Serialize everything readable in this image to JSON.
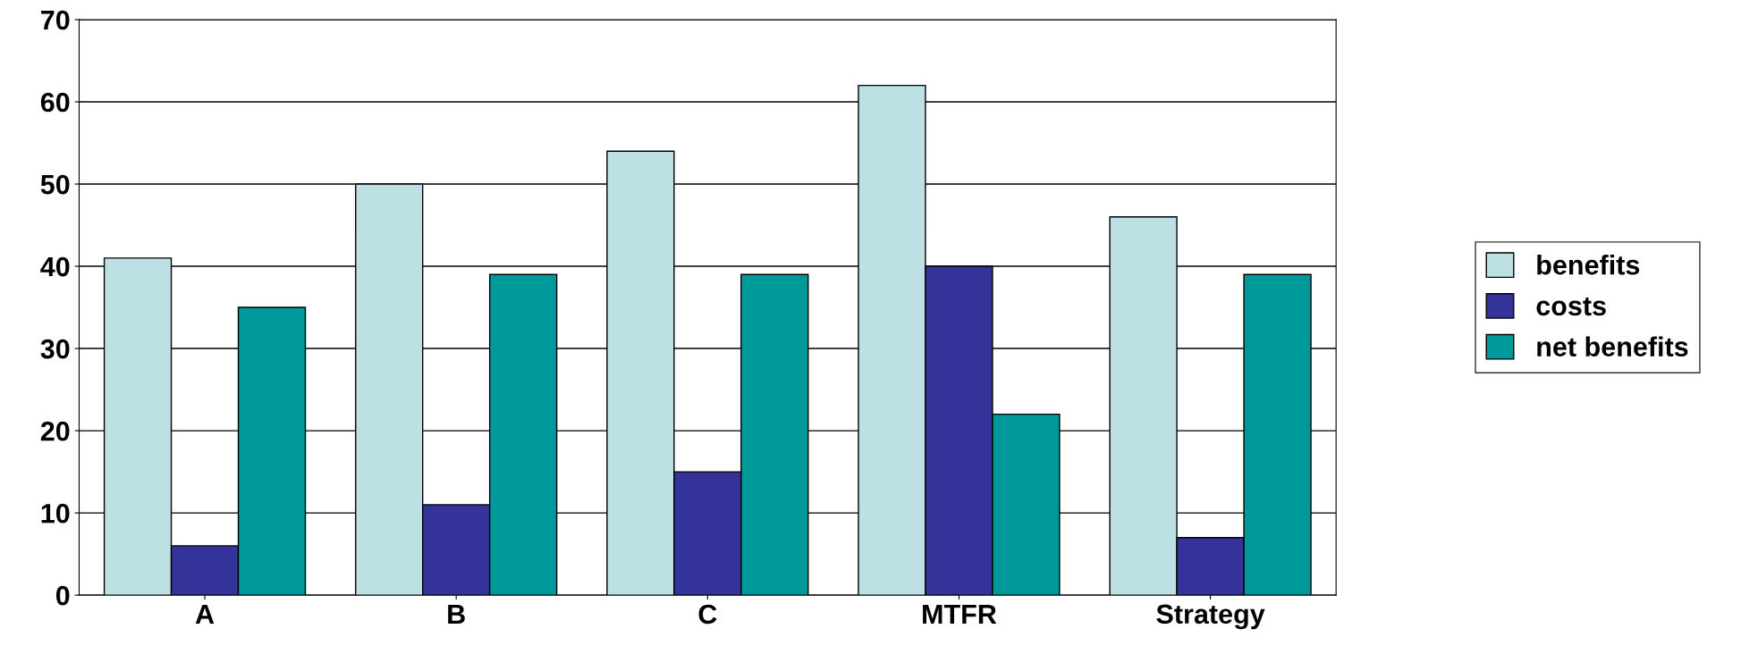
{
  "chart_data": {
    "type": "bar",
    "categories": [
      "A",
      "B",
      "C",
      "MTFR",
      "Strategy"
    ],
    "series": [
      {
        "name": "benefits",
        "color": "#bce0e3",
        "values": [
          41,
          50,
          54,
          62,
          46
        ]
      },
      {
        "name": "costs",
        "color": "#333399",
        "values": [
          6,
          11,
          15,
          40,
          7
        ]
      },
      {
        "name": "net benefits",
        "color": "#009999",
        "values": [
          35,
          39,
          39,
          22,
          39
        ]
      }
    ],
    "ylim": [
      0,
      70
    ],
    "yticks": [
      0,
      10,
      20,
      30,
      40,
      50,
      60,
      70
    ],
    "grid": "y",
    "legend": "right"
  }
}
